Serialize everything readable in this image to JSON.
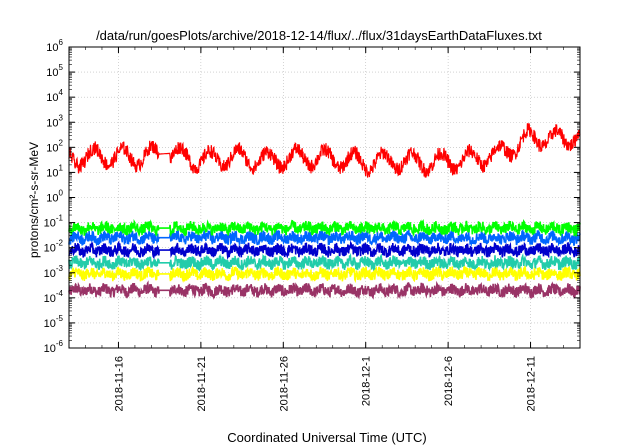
{
  "chart_data": {
    "type": "line",
    "title": "/data/run/goesPlots/archive/2018-12-14/flux/../flux/31daysEarthDataFluxes.txt",
    "xlabel": "Coordinated Universal Time (UTC)",
    "ylabel": "protons/cm²-s-sr-MeV",
    "yscale": "log",
    "ylim": [
      1e-06,
      1000000.0
    ],
    "xlim": [
      "2018-11-13T00:00",
      "2018-12-14T00:00"
    ],
    "grid": true,
    "x_ticks": [
      "2018-11-16",
      "2018-11-21",
      "2018-11-26",
      "2018-12-1",
      "2018-12-6",
      "2018-12-11"
    ],
    "y_ticks": [
      {
        "base": "10",
        "exp": "-6"
      },
      {
        "base": "10",
        "exp": "-5"
      },
      {
        "base": "10",
        "exp": "-4"
      },
      {
        "base": "10",
        "exp": "-3"
      },
      {
        "base": "10",
        "exp": "-2"
      },
      {
        "base": "10",
        "exp": "-1"
      },
      {
        "base": "10",
        "exp": "0"
      },
      {
        "base": "10",
        "exp": "1"
      },
      {
        "base": "10",
        "exp": "2"
      },
      {
        "base": "10",
        "exp": "3"
      },
      {
        "base": "10",
        "exp": "4"
      },
      {
        "base": "10",
        "exp": "5"
      },
      {
        "base": "10",
        "exp": "6"
      }
    ],
    "gap": [
      "2018-11-18T11:00",
      "2018-11-19T03:00"
    ],
    "series": [
      {
        "color": "#ff0000",
        "x": [
          "2018-11-13",
          "2018-11-15",
          "2018-11-17",
          "2018-11-19",
          "2018-11-21",
          "2018-11-23",
          "2018-11-25",
          "2018-11-27",
          "2018-11-29",
          "2018-12-01",
          "2018-12-03",
          "2018-12-05",
          "2018-12-07",
          "2018-12-09",
          "2018-12-11",
          "2018-12-13",
          "2018-12-14"
        ],
        "values": [
          35,
          45,
          40,
          60,
          30,
          40,
          30,
          40,
          35,
          25,
          30,
          25,
          30,
          50,
          250,
          200,
          400
        ]
      },
      {
        "color": "#00ff00",
        "x": [
          "2018-11-13",
          "2018-12-14"
        ],
        "values": [
          0.06,
          0.06
        ]
      },
      {
        "color": "#0066ff",
        "x": [
          "2018-11-13",
          "2018-12-14"
        ],
        "values": [
          0.025,
          0.025
        ]
      },
      {
        "color": "#0000cc",
        "x": [
          "2018-11-13",
          "2018-12-14"
        ],
        "values": [
          0.008,
          0.008
        ]
      },
      {
        "color": "#22ccaa",
        "x": [
          "2018-11-13",
          "2018-12-14"
        ],
        "values": [
          0.0025,
          0.0025
        ]
      },
      {
        "color": "#ffff00",
        "x": [
          "2018-11-13",
          "2018-12-14"
        ],
        "values": [
          0.0009,
          0.0009
        ]
      },
      {
        "color": "#993366",
        "x": [
          "2018-11-13",
          "2018-12-14"
        ],
        "values": [
          0.0002,
          0.0002
        ]
      }
    ]
  }
}
